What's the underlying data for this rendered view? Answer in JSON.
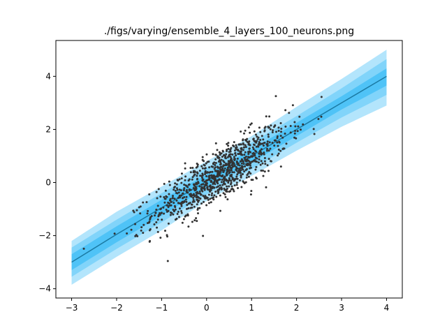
{
  "chart_data": {
    "type": "scatter",
    "title": "./figs/varying/ensemble_4_layers_100_neurons.png",
    "xlabel": "",
    "ylabel": "",
    "xlim": [
      -3.35,
      4.35
    ],
    "ylim": [
      -4.35,
      5.35
    ],
    "x_ticks": [
      -3,
      -2,
      -1,
      0,
      1,
      2,
      3,
      4
    ],
    "y_ticks": [
      -4,
      -2,
      0,
      2,
      4
    ],
    "x_tick_labels": [
      "−3",
      "−2",
      "−1",
      "0",
      "1",
      "2",
      "3",
      "4"
    ],
    "y_tick_labels": [
      "−4",
      "−2",
      "0",
      "2",
      "4"
    ],
    "grid": false,
    "legend": "none",
    "colors": {
      "band_outer": "#b3e5fc",
      "band_middle": "#81d4fa",
      "band_inner": "#4fc3f7",
      "mean_line": "#1b7aa3",
      "points": "#333333"
    },
    "mean_line": {
      "x": [
        -3,
        -2,
        -1,
        0,
        1,
        2,
        3,
        4
      ],
      "y": [
        -3.0,
        -1.95,
        -0.95,
        0.05,
        1.0,
        2.0,
        3.0,
        4.0
      ]
    },
    "uncertainty_bands": {
      "x": [
        -3,
        -2,
        -1,
        0,
        1,
        2,
        3,
        4
      ],
      "outer_lower": [
        -3.85,
        -2.8,
        -1.8,
        -0.7,
        0.25,
        1.2,
        2.1,
        2.9
      ],
      "outer_upper": [
        -2.2,
        -1.1,
        -0.15,
        0.8,
        1.75,
        2.85,
        3.9,
        5.0
      ],
      "middle_lower": [
        -3.55,
        -2.5,
        -1.5,
        -0.45,
        0.5,
        1.5,
        2.45,
        3.3
      ],
      "middle_upper": [
        -2.45,
        -1.4,
        -0.4,
        0.55,
        1.5,
        2.5,
        3.55,
        4.65
      ],
      "inner_lower": [
        -3.3,
        -2.25,
        -1.25,
        -0.2,
        0.75,
        1.75,
        2.75,
        3.65
      ],
      "inner_upper": [
        -2.7,
        -1.65,
        -0.65,
        0.3,
        1.25,
        2.25,
        3.25,
        4.3
      ]
    },
    "points": {
      "count": 1000,
      "slope": 1.0,
      "intercept": 0.0,
      "x_mean": 0.3,
      "x_sd": 0.75,
      "noise_sd": 0.5,
      "x_range": [
        -3.0,
        3.9
      ]
    }
  }
}
